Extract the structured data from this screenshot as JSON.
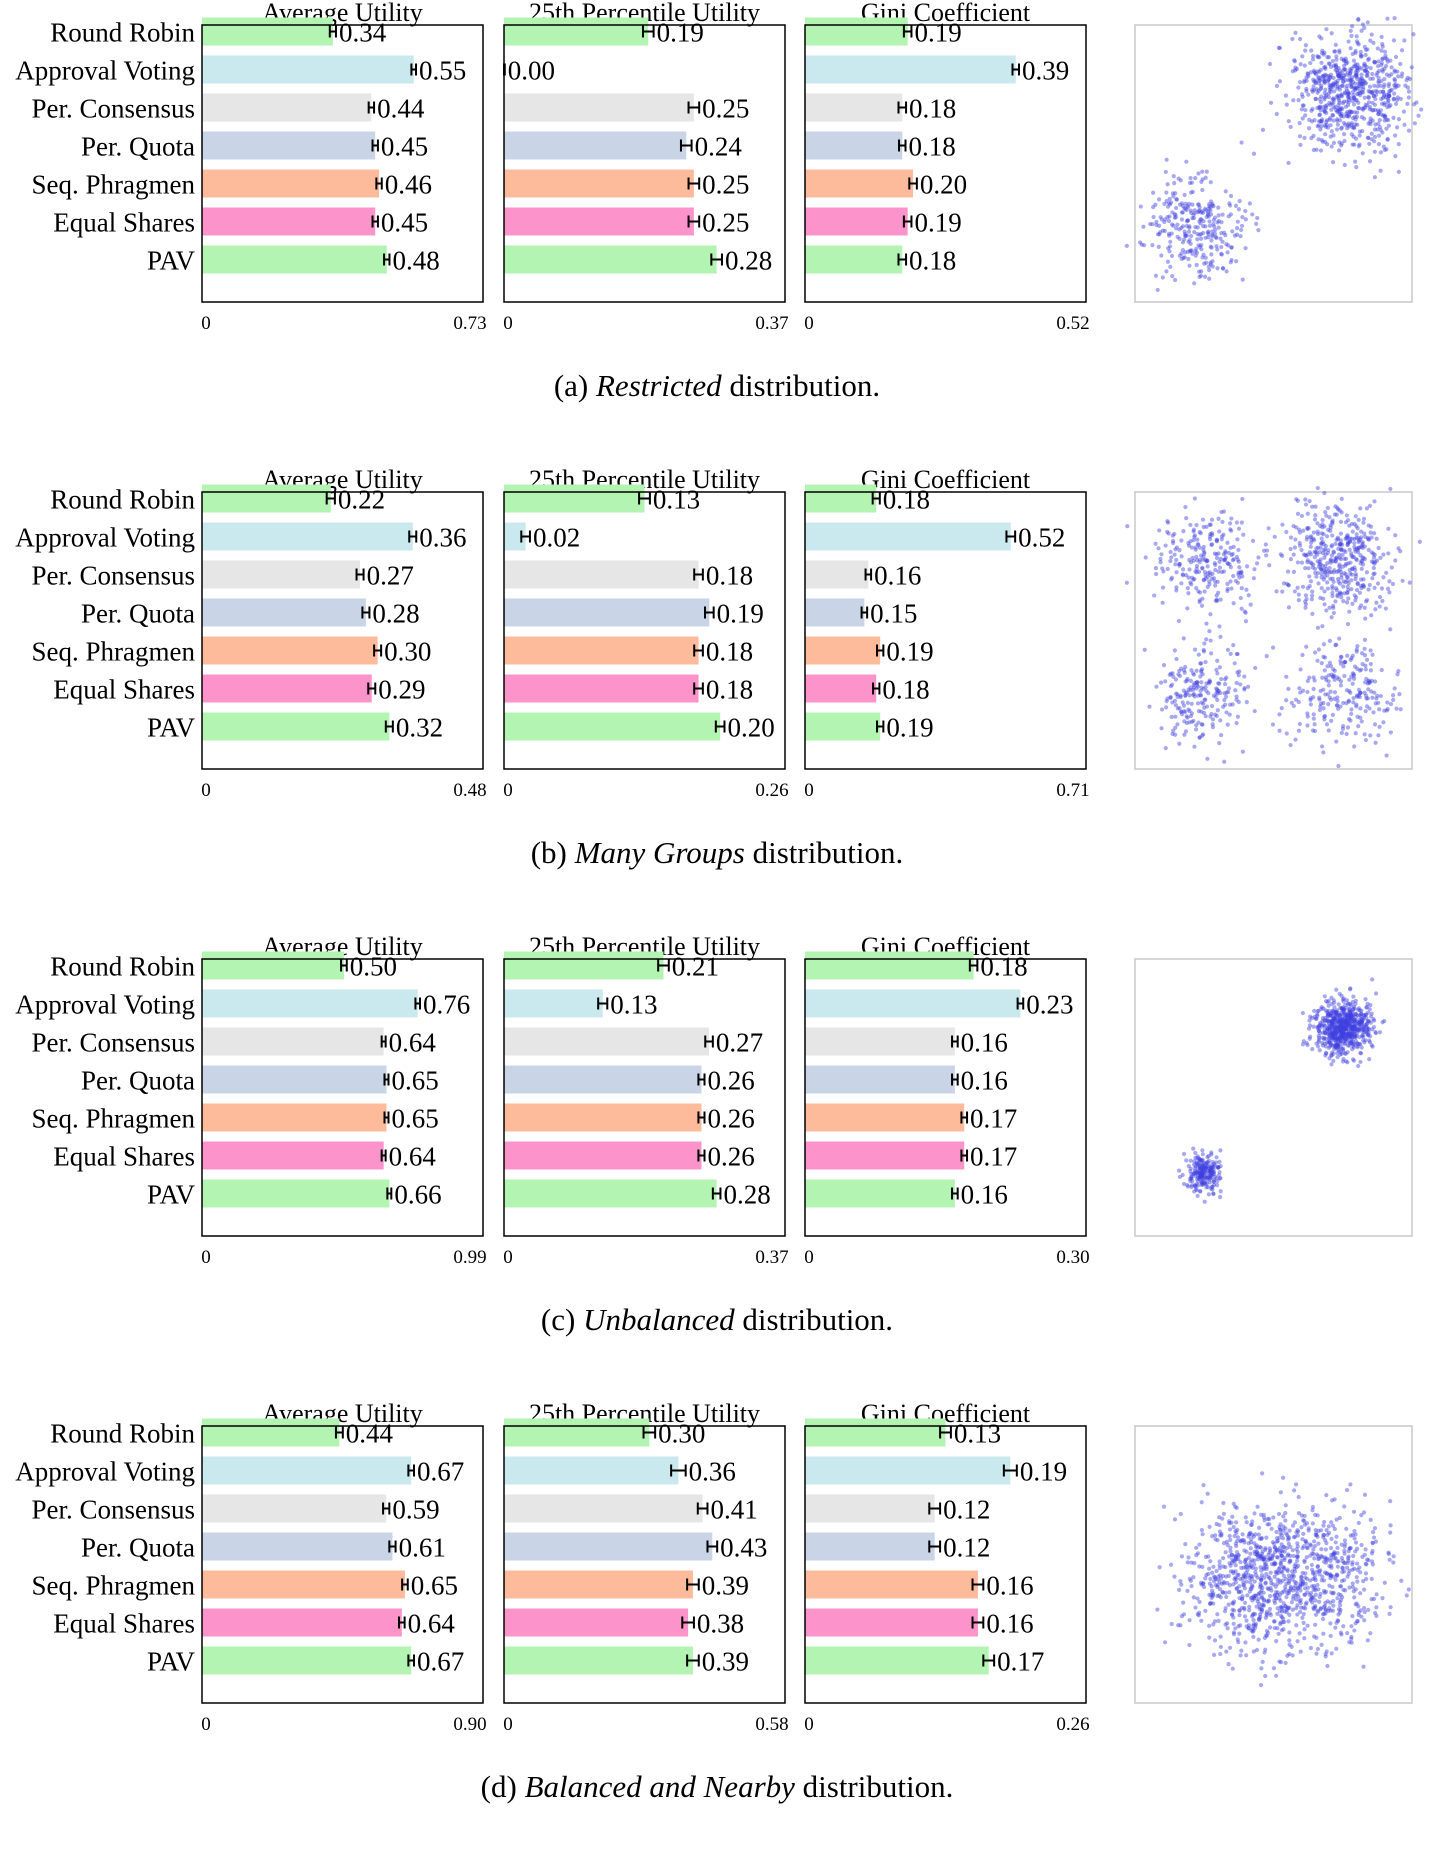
{
  "algorithms": [
    "Round Robin",
    "Approval Voting",
    "Per. Consensus",
    "Per. Quota",
    "Seq. Phragmen",
    "Equal Shares",
    "PAV"
  ],
  "bar_colors": [
    "#b3f4b3",
    "#c9e9ee",
    "#e6e6e6",
    "#c9d5e6",
    "#fdbb9c",
    "#fc94cb",
    "#b3f4b3"
  ],
  "scatter_color": "#4040e0",
  "metric_titles": [
    "Average Utility",
    "25th Percentile Utility",
    "Gini Coefficient"
  ],
  "chart_data": [
    {
      "type": "bar",
      "caption": {
        "prefix": "(a) ",
        "emph": "Restricted",
        "suffix": " distribution."
      },
      "categories": [
        "Round Robin",
        "Approval Voting",
        "Per. Consensus",
        "Per. Quota",
        "Seq. Phragmen",
        "Equal Shares",
        "PAV"
      ],
      "subplots": [
        {
          "title": "Average Utility",
          "xlim": [
            0,
            0.73
          ],
          "tick_labels": [
            "0",
            "0.73"
          ],
          "values": [
            0.34,
            0.55,
            0.44,
            0.45,
            0.46,
            0.45,
            0.48
          ],
          "errors": [
            0.008,
            0.006,
            0.007,
            0.007,
            0.007,
            0.007,
            0.007
          ],
          "labels": [
            "0.34",
            "0.55",
            "0.44",
            "0.45",
            "0.46",
            "0.45",
            "0.48"
          ]
        },
        {
          "title": "25th Percentile Utility",
          "xlim": [
            0,
            0.37
          ],
          "tick_labels": [
            "0",
            "0.37"
          ],
          "values": [
            0.19,
            0.0,
            0.25,
            0.24,
            0.25,
            0.25,
            0.28
          ],
          "errors": [
            0.007,
            0.001,
            0.007,
            0.007,
            0.007,
            0.007,
            0.007
          ],
          "labels": [
            "0.19",
            "0.00",
            "0.25",
            "0.24",
            "0.25",
            "0.25",
            "0.28"
          ]
        },
        {
          "title": "Gini Coefficient",
          "xlim": [
            0,
            0.52
          ],
          "tick_labels": [
            "0",
            "0.52"
          ],
          "values": [
            0.19,
            0.39,
            0.18,
            0.18,
            0.2,
            0.19,
            0.18
          ],
          "errors": [
            0.007,
            0.006,
            0.007,
            0.006,
            0.007,
            0.007,
            0.007
          ],
          "labels": [
            "0.19",
            "0.39",
            "0.18",
            "0.18",
            "0.20",
            "0.19",
            "0.18"
          ]
        }
      ],
      "scatter": {
        "clusters": [
          {
            "cx": 0.78,
            "cy": 0.76,
            "sd": 0.105,
            "n": 700
          },
          {
            "cx": 0.22,
            "cy": 0.27,
            "sd": 0.09,
            "n": 300
          }
        ]
      }
    },
    {
      "type": "bar",
      "caption": {
        "prefix": "(b) ",
        "emph": "Many Groups",
        "suffix": " distribution."
      },
      "categories": [
        "Round Robin",
        "Approval Voting",
        "Per. Consensus",
        "Per. Quota",
        "Seq. Phragmen",
        "Equal Shares",
        "PAV"
      ],
      "subplots": [
        {
          "title": "Average Utility",
          "xlim": [
            0,
            0.48
          ],
          "tick_labels": [
            "0",
            "0.48"
          ],
          "values": [
            0.22,
            0.36,
            0.27,
            0.28,
            0.3,
            0.29,
            0.32
          ],
          "errors": [
            0.007,
            0.006,
            0.006,
            0.006,
            0.006,
            0.006,
            0.006
          ],
          "labels": [
            "0.22",
            "0.36",
            "0.27",
            "0.28",
            "0.30",
            "0.29",
            "0.32"
          ]
        },
        {
          "title": "25th Percentile Utility",
          "xlim": [
            0,
            0.26
          ],
          "tick_labels": [
            "0",
            "0.26"
          ],
          "values": [
            0.13,
            0.02,
            0.18,
            0.19,
            0.18,
            0.18,
            0.2
          ],
          "errors": [
            0.005,
            0.004,
            0.004,
            0.004,
            0.004,
            0.004,
            0.004
          ],
          "labels": [
            "0.13",
            "0.02",
            "0.18",
            "0.19",
            "0.18",
            "0.18",
            "0.20"
          ]
        },
        {
          "title": "Gini Coefficient",
          "xlim": [
            0,
            0.71
          ],
          "tick_labels": [
            "0",
            "0.71"
          ],
          "values": [
            0.18,
            0.52,
            0.16,
            0.15,
            0.19,
            0.18,
            0.19
          ],
          "errors": [
            0.009,
            0.011,
            0.007,
            0.007,
            0.008,
            0.008,
            0.008
          ],
          "labels": [
            "0.18",
            "0.52",
            "0.16",
            "0.15",
            "0.19",
            "0.18",
            "0.19"
          ]
        }
      ],
      "scatter": {
        "clusters": [
          {
            "cx": 0.73,
            "cy": 0.75,
            "sd": 0.1,
            "n": 450
          },
          {
            "cx": 0.26,
            "cy": 0.75,
            "sd": 0.09,
            "n": 250
          },
          {
            "cx": 0.24,
            "cy": 0.27,
            "sd": 0.09,
            "n": 230
          },
          {
            "cx": 0.75,
            "cy": 0.27,
            "sd": 0.1,
            "n": 230
          }
        ]
      }
    },
    {
      "type": "bar",
      "caption": {
        "prefix": "(c) ",
        "emph": "Unbalanced",
        "suffix": " distribution."
      },
      "categories": [
        "Round Robin",
        "Approval Voting",
        "Per. Consensus",
        "Per. Quota",
        "Seq. Phragmen",
        "Equal Shares",
        "PAV"
      ],
      "subplots": [
        {
          "title": "Average Utility",
          "xlim": [
            0,
            0.99
          ],
          "tick_labels": [
            "0",
            "0.99"
          ],
          "values": [
            0.5,
            0.76,
            0.64,
            0.65,
            0.65,
            0.64,
            0.66
          ],
          "errors": [
            0.01,
            0.008,
            0.007,
            0.007,
            0.007,
            0.007,
            0.007
          ],
          "labels": [
            "0.50",
            "0.76",
            "0.64",
            "0.65",
            "0.65",
            "0.64",
            "0.66"
          ]
        },
        {
          "title": "25th Percentile Utility",
          "xlim": [
            0,
            0.37
          ],
          "tick_labels": [
            "0",
            "0.37"
          ],
          "values": [
            0.21,
            0.13,
            0.27,
            0.26,
            0.26,
            0.26,
            0.28
          ],
          "errors": [
            0.007,
            0.006,
            0.005,
            0.004,
            0.004,
            0.004,
            0.005
          ],
          "labels": [
            "0.21",
            "0.13",
            "0.27",
            "0.26",
            "0.26",
            "0.26",
            "0.28"
          ]
        },
        {
          "title": "Gini Coefficient",
          "xlim": [
            0,
            0.3
          ],
          "tick_labels": [
            "0",
            "0.30"
          ],
          "values": [
            0.18,
            0.23,
            0.16,
            0.16,
            0.17,
            0.17,
            0.16
          ],
          "errors": [
            0.004,
            0.003,
            0.003,
            0.003,
            0.003,
            0.003,
            0.003
          ],
          "labels": [
            "0.18",
            "0.23",
            "0.16",
            "0.16",
            "0.17",
            "0.17",
            "0.16"
          ]
        }
      ],
      "scatter": {
        "clusters": [
          {
            "cx": 0.75,
            "cy": 0.75,
            "sd": 0.05,
            "n": 650
          },
          {
            "cx": 0.25,
            "cy": 0.23,
            "sd": 0.035,
            "n": 220
          }
        ]
      }
    },
    {
      "type": "bar",
      "caption": {
        "prefix": "(d) ",
        "emph": "Balanced and Nearby",
        "suffix": " distribution."
      },
      "categories": [
        "Round Robin",
        "Approval Voting",
        "Per. Consensus",
        "Per. Quota",
        "Seq. Phragmen",
        "Equal Shares",
        "PAV"
      ],
      "subplots": [
        {
          "title": "Average Utility",
          "xlim": [
            0,
            0.9
          ],
          "tick_labels": [
            "0",
            "0.90"
          ],
          "values": [
            0.44,
            0.67,
            0.59,
            0.61,
            0.65,
            0.64,
            0.67
          ],
          "errors": [
            0.011,
            0.009,
            0.01,
            0.01,
            0.009,
            0.009,
            0.009
          ],
          "labels": [
            "0.44",
            "0.67",
            "0.59",
            "0.61",
            "0.65",
            "0.64",
            "0.67"
          ]
        },
        {
          "title": "25th Percentile Utility",
          "xlim": [
            0,
            0.58
          ],
          "tick_labels": [
            "0",
            "0.58"
          ],
          "values": [
            0.3,
            0.36,
            0.41,
            0.43,
            0.39,
            0.38,
            0.39
          ],
          "errors": [
            0.012,
            0.015,
            0.01,
            0.01,
            0.012,
            0.012,
            0.012
          ],
          "labels": [
            "0.30",
            "0.36",
            "0.41",
            "0.43",
            "0.39",
            "0.38",
            "0.39"
          ]
        },
        {
          "title": "Gini Coefficient",
          "xlim": [
            0,
            0.26
          ],
          "tick_labels": [
            "0",
            "0.26"
          ],
          "values": [
            0.13,
            0.19,
            0.12,
            0.12,
            0.16,
            0.16,
            0.17
          ],
          "errors": [
            0.005,
            0.006,
            0.005,
            0.005,
            0.005,
            0.005,
            0.005
          ],
          "labels": [
            "0.13",
            "0.19",
            "0.12",
            "0.12",
            "0.16",
            "0.16",
            "0.17"
          ]
        }
      ],
      "scatter": {
        "clusters": [
          {
            "cx": 0.43,
            "cy": 0.45,
            "sd": 0.13,
            "n": 620
          },
          {
            "cx": 0.65,
            "cy": 0.46,
            "sd": 0.13,
            "n": 480
          }
        ]
      }
    }
  ]
}
